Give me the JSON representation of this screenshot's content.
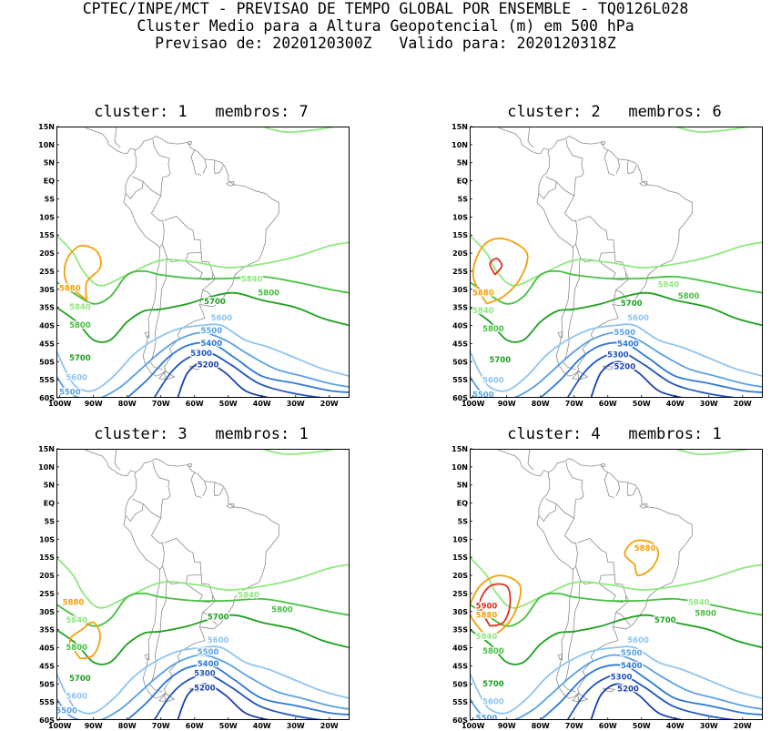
{
  "header": {
    "line1": "CPTEC/INPE/MCT - PREVISAO DE TEMPO GLOBAL POR ENSEMBLE - TQ0126L028",
    "line2": "Cluster Medio para a Altura Geopotencial (m) em 500 hPa",
    "line3": "Previsao de: 2020120300Z   Valido para: 2020120318Z"
  },
  "colors": {
    "c5900": "#e0301e",
    "c5880": "#f5a00a",
    "c5840": "#8ee87e",
    "c5800": "#44c040",
    "c5700": "#1ea020",
    "c5600": "#8ec4f0",
    "c5500": "#5aa0e6",
    "c5400": "#2c78d8",
    "c5300": "#1f55c0",
    "c5200": "#1a40b0"
  },
  "y_ticks": [
    "15N",
    "10N",
    "5N",
    "EQ",
    "5S",
    "10S",
    "15S",
    "20S",
    "25S",
    "30S",
    "35S",
    "40S",
    "45S",
    "50S",
    "55S",
    "60S"
  ],
  "x_ticks": [
    "100W",
    "90W",
    "80W",
    "70W",
    "60W",
    "50W",
    "40W",
    "30W",
    "20W"
  ],
  "panels": [
    {
      "title": "cluster: 1   membros: 7",
      "labels": {
        "l5880a": "5880",
        "l5840a": "5840",
        "l5840b": "5840",
        "l5800a": "5800",
        "l5800b": "5800",
        "l5700a": "5700",
        "l5700b": "5700",
        "l5600a": "5600",
        "l5600b": "5600",
        "l5500a": "5500",
        "l5500b": "5500",
        "l5400": "5400",
        "l5300": "5300",
        "l5200": "5200"
      }
    },
    {
      "title": "cluster: 2   membros: 6",
      "labels": {
        "l5880a": "5880",
        "l5840a": "5840",
        "l5840b": "5840",
        "l5800a": "5800",
        "l5800b": "5800",
        "l5700a": "5700",
        "l5700b": "5700",
        "l5600a": "5600",
        "l5600b": "5600",
        "l5500a": "5500",
        "l5500b": "5500",
        "l5400": "5400",
        "l5300": "5300",
        "l5200": "5200"
      }
    },
    {
      "title": "cluster: 3   membros: 1",
      "labels": {
        "l5880a": "5880",
        "l5840a": "5840",
        "l5840b": "5840",
        "l5800a": "5800",
        "l5800b": "5800",
        "l5700a": "5700",
        "l5700b": "5700",
        "l5600a": "5600",
        "l5600b": "5600",
        "l5500a": "5500",
        "l5500b": "5500",
        "l5400": "5400",
        "l5300": "5300",
        "l5200": "5200"
      }
    },
    {
      "title": "cluster: 4   membros: 1",
      "labels": {
        "l5900": "5900",
        "l5880a": "5880",
        "l5880b": "5880",
        "l5840a": "5840",
        "l5840b": "5840",
        "l5800a": "5800",
        "l5800b": "5800",
        "l5700a": "5700",
        "l5700b": "5700",
        "l5600a": "5600",
        "l5600b": "5600",
        "l5500a": "5500",
        "l5500b": "5500",
        "l5400": "5400",
        "l5300": "5300",
        "l5200": "5200"
      }
    }
  ]
}
